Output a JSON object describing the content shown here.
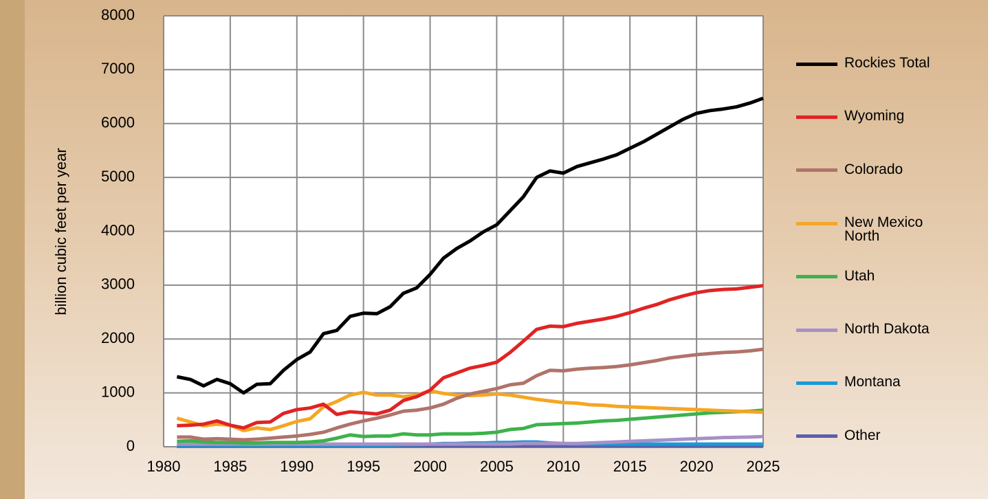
{
  "chart_data": {
    "type": "line",
    "y_label": "billion cubic feet per year",
    "x": [
      1981,
      1982,
      1983,
      1984,
      1985,
      1986,
      1987,
      1988,
      1989,
      1990,
      1991,
      1992,
      1993,
      1994,
      1995,
      1996,
      1997,
      1998,
      1999,
      2000,
      2001,
      2002,
      2003,
      2004,
      2005,
      2006,
      2007,
      2008,
      2009,
      2010,
      2011,
      2012,
      2013,
      2014,
      2015,
      2016,
      2017,
      2018,
      2019,
      2020,
      2021,
      2022,
      2023,
      2024,
      2025
    ],
    "xlim": [
      1980,
      2025
    ],
    "xticks": [
      1980,
      1985,
      1990,
      1995,
      2000,
      2005,
      2010,
      2015,
      2020,
      2025
    ],
    "ylim": [
      0,
      8000
    ],
    "yticks": [
      0,
      1000,
      2000,
      3000,
      4000,
      5000,
      6000,
      7000,
      8000
    ],
    "grid": true,
    "legend": "right",
    "series": [
      {
        "name": "Rockies Total",
        "color": "#000000",
        "values": [
          1300,
          1250,
          1130,
          1250,
          1170,
          1000,
          1160,
          1170,
          1420,
          1620,
          1760,
          2100,
          2160,
          2420,
          2480,
          2470,
          2600,
          2850,
          2950,
          3200,
          3500,
          3680,
          3820,
          3990,
          4120,
          4380,
          4640,
          5000,
          5120,
          5080,
          5200,
          5270,
          5340,
          5420,
          5540,
          5660,
          5800,
          5940,
          6080,
          6190,
          6240,
          6270,
          6310,
          6380,
          6470
        ]
      },
      {
        "name": "Wyoming",
        "color": "#e02424",
        "values": [
          390,
          400,
          420,
          480,
          400,
          350,
          450,
          460,
          620,
          690,
          720,
          790,
          600,
          650,
          630,
          610,
          680,
          860,
          930,
          1050,
          1280,
          1370,
          1460,
          1510,
          1570,
          1750,
          1960,
          2180,
          2240,
          2230,
          2290,
          2330,
          2370,
          2420,
          2490,
          2570,
          2640,
          2730,
          2800,
          2860,
          2900,
          2920,
          2930,
          2960,
          2990
        ]
      },
      {
        "name": "Colorado",
        "color": "#b0736a",
        "values": [
          180,
          180,
          140,
          150,
          140,
          130,
          140,
          160,
          180,
          200,
          230,
          270,
          350,
          420,
          480,
          530,
          590,
          660,
          680,
          720,
          790,
          900,
          980,
          1030,
          1080,
          1150,
          1180,
          1320,
          1420,
          1410,
          1440,
          1460,
          1470,
          1490,
          1520,
          1560,
          1600,
          1650,
          1680,
          1710,
          1730,
          1750,
          1760,
          1780,
          1810
        ]
      },
      {
        "name": "New Mexico North",
        "color": "#f5a623",
        "values": [
          530,
          460,
          390,
          420,
          400,
          300,
          350,
          320,
          390,
          470,
          520,
          740,
          840,
          960,
          1010,
          960,
          960,
          930,
          960,
          1040,
          990,
          960,
          950,
          960,
          980,
          960,
          920,
          880,
          850,
          820,
          810,
          780,
          770,
          750,
          740,
          730,
          720,
          710,
          700,
          690,
          680,
          670,
          660,
          650,
          640
        ]
      },
      {
        "name": "Utah",
        "color": "#3cb34a",
        "values": [
          100,
          110,
          90,
          80,
          80,
          70,
          70,
          80,
          80,
          80,
          90,
          110,
          160,
          220,
          190,
          200,
          200,
          240,
          220,
          220,
          240,
          240,
          240,
          250,
          270,
          320,
          340,
          410,
          420,
          430,
          440,
          460,
          480,
          490,
          510,
          530,
          550,
          570,
          590,
          610,
          630,
          640,
          650,
          660,
          680
        ]
      },
      {
        "name": "North Dakota",
        "color": "#a890c8",
        "values": [
          50,
          50,
          50,
          50,
          50,
          50,
          50,
          50,
          50,
          50,
          50,
          50,
          50,
          50,
          50,
          50,
          50,
          50,
          50,
          50,
          50,
          50,
          50,
          50,
          50,
          50,
          60,
          60,
          60,
          60,
          60,
          70,
          80,
          90,
          100,
          110,
          120,
          130,
          140,
          150,
          160,
          170,
          175,
          180,
          190
        ]
      },
      {
        "name": "Montana",
        "color": "#1a9ad6",
        "values": [
          30,
          30,
          30,
          30,
          30,
          30,
          30,
          30,
          30,
          30,
          30,
          30,
          30,
          30,
          30,
          30,
          30,
          40,
          40,
          50,
          60,
          60,
          70,
          70,
          80,
          80,
          90,
          90,
          70,
          60,
          50,
          50,
          50,
          50,
          50,
          50,
          50,
          50,
          50,
          50,
          50,
          50,
          50,
          50,
          50
        ]
      },
      {
        "name": "Other",
        "color": "#5a5faa",
        "values": [
          10,
          10,
          10,
          10,
          10,
          10,
          10,
          10,
          10,
          10,
          10,
          10,
          10,
          10,
          10,
          10,
          10,
          10,
          10,
          10,
          10,
          10,
          10,
          10,
          10,
          10,
          10,
          10,
          10,
          10,
          10,
          10,
          10,
          10,
          10,
          10,
          10,
          10,
          10,
          10,
          10,
          10,
          10,
          10,
          10
        ]
      }
    ]
  }
}
